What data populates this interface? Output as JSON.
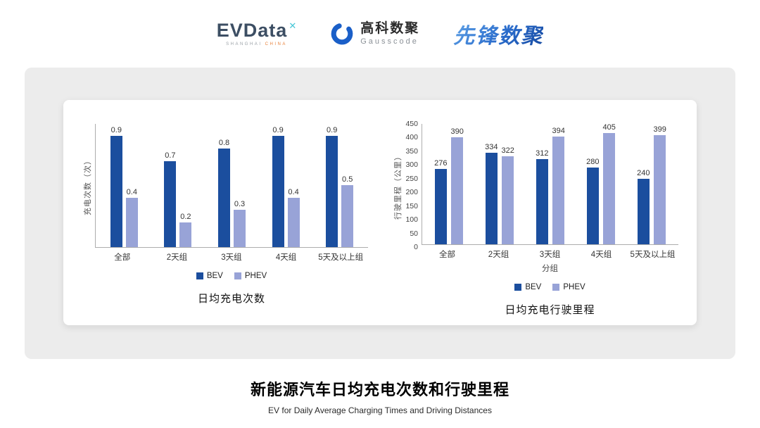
{
  "header": {
    "evdata": {
      "name": "EVData",
      "mark": "✕",
      "sub_left": "SHANGHAI",
      "sub_right": "CHINA"
    },
    "gausscode": {
      "cn": "高科数聚",
      "en": "Gausscode",
      "logo_icon": "gausscode-ring-icon",
      "logo_color": "#1a5fc8"
    },
    "pioneer": "先锋数聚"
  },
  "colors": {
    "bev": "#1b4e9e",
    "phev": "#98a3d7",
    "axis": "#adadad",
    "panel_bg": "#ececec"
  },
  "chart_data": [
    {
      "type": "bar",
      "title": "日均充电次数",
      "ylabel": "充电次数（次）",
      "xlabel": "",
      "categories": [
        "全部",
        "2天组",
        "3天组",
        "4天组",
        "5天及以上组"
      ],
      "series": [
        {
          "name": "BEV",
          "values": [
            0.9,
            0.7,
            0.8,
            0.9,
            0.9
          ]
        },
        {
          "name": "PHEV",
          "values": [
            0.4,
            0.2,
            0.3,
            0.4,
            0.5
          ]
        }
      ],
      "ylim": [
        0,
        1.0
      ],
      "yticks": [],
      "grid": false,
      "legend_position": "bottom"
    },
    {
      "type": "bar",
      "title": "日均充电行驶里程",
      "ylabel": "行驶里程（公里）",
      "xlabel": "分组",
      "categories": [
        "全部",
        "2天组",
        "3天组",
        "4天组",
        "5天及以上组"
      ],
      "series": [
        {
          "name": "BEV",
          "values": [
            276,
            334,
            312,
            280,
            240
          ]
        },
        {
          "name": "PHEV",
          "values": [
            390,
            322,
            394,
            405,
            399
          ]
        }
      ],
      "ylim": [
        0,
        450
      ],
      "yticks": [
        0,
        50,
        100,
        150,
        200,
        250,
        300,
        350,
        400,
        450
      ],
      "grid": false,
      "legend_position": "bottom"
    }
  ],
  "footer": {
    "title": "新能源汽车日均充电次数和行驶里程",
    "subtitle": "EV for Daily Average Charging Times and Driving Distances"
  }
}
